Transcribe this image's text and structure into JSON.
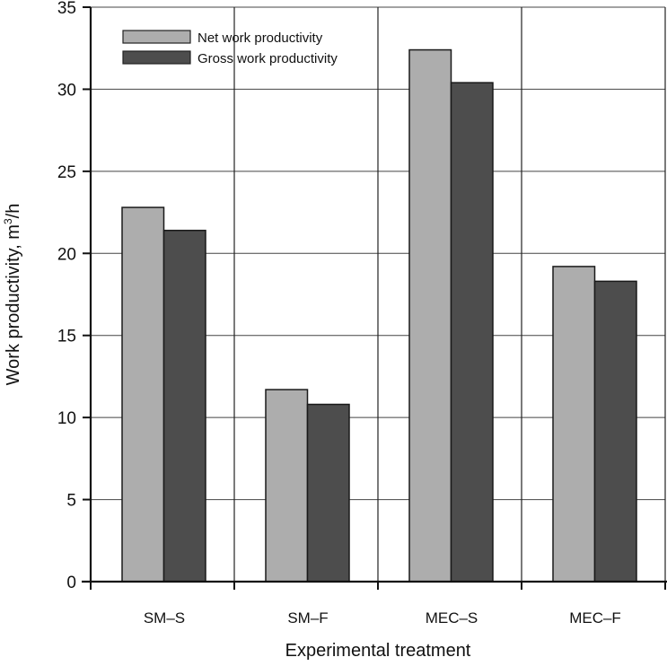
{
  "chart_data": {
    "type": "bar",
    "title": "",
    "xlabel": "Experimental treatment",
    "ylabel_main": "Work productivity, m",
    "ylabel_sup": "3",
    "ylabel_tail": "/h",
    "ylabel": "Work productivity, m³/h",
    "categories": [
      "SM–S",
      "SM–F",
      "MEC–S",
      "MEC–F"
    ],
    "ylim": [
      0,
      35
    ],
    "yticks": [
      0,
      5,
      10,
      15,
      20,
      25,
      30,
      35
    ],
    "grid": true,
    "legend_position": "top-left",
    "series": [
      {
        "name": "Net work productivity",
        "color": "#adadad",
        "values": [
          22.8,
          11.7,
          32.4,
          19.2
        ]
      },
      {
        "name": "Gross work productivity",
        "color": "#4d4d4d",
        "values": [
          21.4,
          10.8,
          30.4,
          18.3
        ]
      }
    ]
  }
}
